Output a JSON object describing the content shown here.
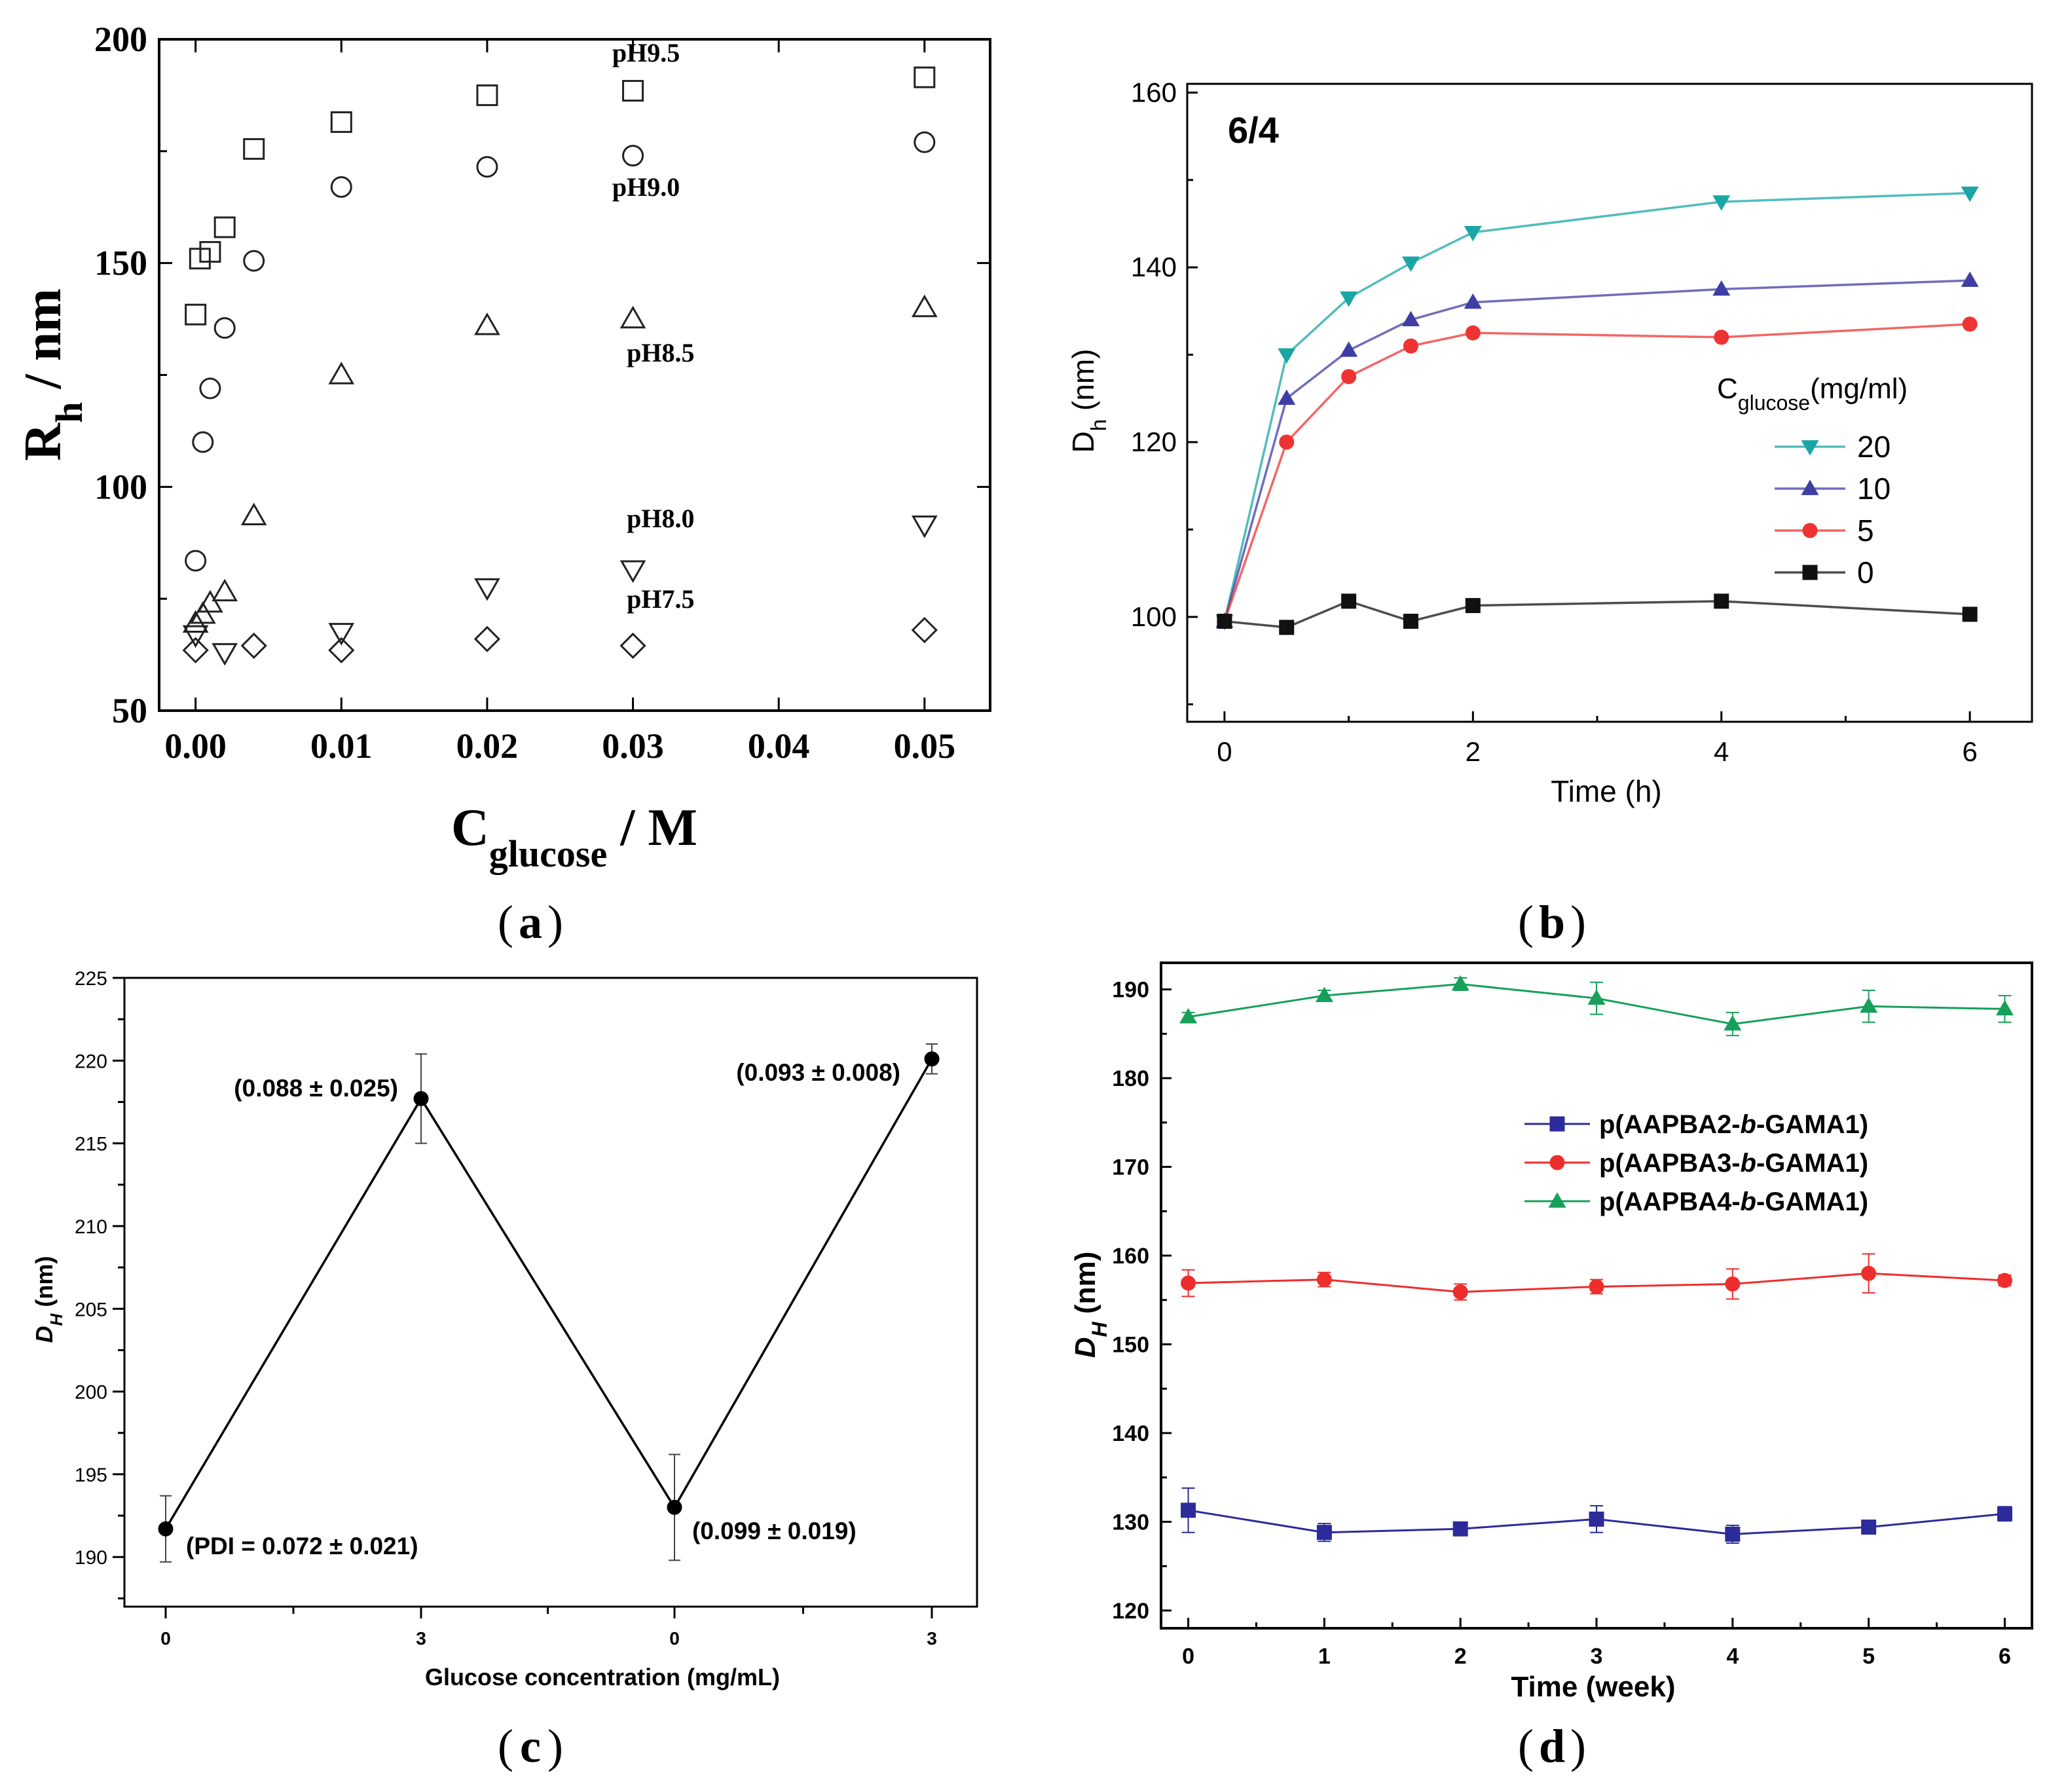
{
  "chart_data": [
    {
      "id": "a",
      "type": "scatter",
      "panel_label": "a",
      "xlabel": "C",
      "xlabel_sub": "glucose",
      "xlabel_suffix": " / M",
      "ylabel": "R",
      "ylabel_sub": "h",
      "ylabel_suffix": " / nm",
      "xlim": [
        -0.0025,
        0.0545
      ],
      "ylim": [
        50,
        200
      ],
      "xticks": [
        0,
        0.01,
        0.02,
        0.03,
        0.04,
        0.05
      ],
      "xtick_labels": [
        "0.00",
        "0.01",
        "0.02",
        "0.03",
        "0.04",
        "0.05"
      ],
      "yticks": [
        50,
        100,
        150,
        200
      ],
      "ytick_labels": [
        "50",
        "100",
        "150",
        "200"
      ],
      "series": [
        {
          "name": "pH9.5",
          "marker": "square",
          "label_pos": [
            0.03,
            195
          ],
          "points": [
            [
              0.0,
              138.5
            ],
            [
              0.0003,
              151
            ],
            [
              0.001,
              152.5
            ],
            [
              0.002,
              158
            ],
            [
              0.004,
              175.5
            ],
            [
              0.01,
              181.5
            ],
            [
              0.02,
              187.5
            ],
            [
              0.03,
              188.5
            ],
            [
              0.05,
              191.5
            ]
          ]
        },
        {
          "name": "pH9.0",
          "marker": "circle",
          "label_pos": [
            0.03,
            165
          ],
          "points": [
            [
              0.0,
              83.5
            ],
            [
              0.0005,
              110
            ],
            [
              0.001,
              122
            ],
            [
              0.002,
              135.5
            ],
            [
              0.004,
              150.5
            ],
            [
              0.01,
              167
            ],
            [
              0.02,
              171.5
            ],
            [
              0.03,
              174
            ],
            [
              0.05,
              177
            ]
          ]
        },
        {
          "name": "pH8.5",
          "marker": "triangle-up",
          "label_pos": [
            0.031,
            128
          ],
          "points": [
            [
              0.0,
              69.5
            ],
            [
              0.0005,
              71.5
            ],
            [
              0.001,
              74
            ],
            [
              0.002,
              76.5
            ],
            [
              0.004,
              93.5
            ],
            [
              0.01,
              125
            ],
            [
              0.02,
              136
            ],
            [
              0.03,
              137.5
            ],
            [
              0.05,
              140
            ]
          ]
        },
        {
          "name": "pH8.0",
          "marker": "triangle-down",
          "label_pos": [
            0.031,
            91
          ],
          "points": [
            [
              0.0,
              67
            ],
            [
              0.002,
              63
            ],
            [
              0.01,
              67.5
            ],
            [
              0.02,
              77.5
            ],
            [
              0.03,
              81.5
            ],
            [
              0.05,
              91.5
            ]
          ]
        },
        {
          "name": "pH7.5",
          "marker": "diamond",
          "label_pos": [
            0.031,
            73
          ],
          "points": [
            [
              0.0,
              63.5
            ],
            [
              0.004,
              64.5
            ],
            [
              0.01,
              63.5
            ],
            [
              0.02,
              66
            ],
            [
              0.03,
              64.5
            ],
            [
              0.05,
              68
            ]
          ]
        }
      ]
    },
    {
      "id": "b",
      "type": "line",
      "panel_label": "b",
      "annotation": "6/4",
      "xlabel": "Time (h)",
      "ylabel": "D",
      "ylabel_sub": "h",
      "ylabel_suffix": " (nm)",
      "xlim": [
        -0.3,
        6.5
      ],
      "ylim": [
        88,
        161
      ],
      "xticks": [
        0,
        2,
        4,
        6
      ],
      "yticks": [
        100,
        120,
        140,
        160
      ],
      "legend_title": "C",
      "legend_title_sub": "glucose",
      "legend_title_suffix": "(mg/ml)",
      "legend_position": "center-right",
      "series": [
        {
          "name": "20",
          "color": "#1aa6a6",
          "marker": "triangle-down",
          "x": [
            0,
            0.5,
            1,
            1.5,
            2,
            4,
            6
          ],
          "y": [
            99.5,
            130,
            136.5,
            140.5,
            144,
            147.5,
            148.5
          ]
        },
        {
          "name": "10",
          "color": "#3f3ea6",
          "marker": "triangle-up",
          "x": [
            0,
            0.5,
            1,
            1.5,
            2,
            4,
            6
          ],
          "y": [
            99.5,
            125,
            130.5,
            134,
            136,
            137.5,
            138.5
          ]
        },
        {
          "name": "5",
          "color": "#ee3333",
          "marker": "circle",
          "x": [
            0,
            0.5,
            1,
            1.5,
            2,
            4,
            6
          ],
          "y": [
            99.5,
            120,
            127.5,
            131,
            132.5,
            132,
            133.5
          ]
        },
        {
          "name": "0",
          "color": "#111111",
          "marker": "square",
          "x": [
            0,
            0.5,
            1,
            1.5,
            2,
            4,
            6
          ],
          "y": [
            99.5,
            98.8,
            101.8,
            99.5,
            101.3,
            101.8,
            100.3
          ]
        }
      ]
    },
    {
      "id": "c",
      "type": "line",
      "panel_label": "c",
      "xlabel": "Glucose concentration (mg/mL)",
      "ylabel": "D",
      "ylabel_sub": "H",
      "ylabel_suffix": " (nm)",
      "ylim": [
        187,
        225
      ],
      "yticks": [
        190,
        195,
        200,
        205,
        210,
        215,
        220,
        225
      ],
      "categories": [
        "0",
        "3",
        "0",
        "3"
      ],
      "values": [
        191.7,
        217.7,
        193.0,
        220.1
      ],
      "errors": [
        2.0,
        2.7,
        3.2,
        0.9
      ],
      "point_labels": [
        "(PDI = 0.072 ± 0.021)",
        "(0.088 ± 0.025)",
        "(0.099 ± 0.019)",
        "(0.093 ± 0.008)"
      ]
    },
    {
      "id": "d",
      "type": "line",
      "panel_label": "d",
      "xlabel": "Time (week)",
      "ylabel": "D",
      "ylabel_sub": "H",
      "ylabel_suffix": " (nm)",
      "xlim": [
        -0.2,
        6.2
      ],
      "ylim": [
        118,
        193
      ],
      "xticks": [
        0,
        1,
        2,
        3,
        4,
        5,
        6
      ],
      "yticks": [
        120,
        130,
        140,
        150,
        160,
        170,
        180,
        190
      ],
      "legend_position": "upper-center",
      "series": [
        {
          "name_pre": "p(AAPBA2-",
          "name_it": "b",
          "name_post": "-GAMA1)",
          "color": "#2b2b9a",
          "marker": "square",
          "x": [
            0,
            1,
            2,
            3,
            4,
            5,
            6
          ],
          "y": [
            131.3,
            128.8,
            129.2,
            130.3,
            128.6,
            129.4,
            130.9
          ],
          "err": [
            2.5,
            1.0,
            0.6,
            1.5,
            1.0,
            0.6,
            0.8
          ]
        },
        {
          "name_pre": "p(AAPBA3-",
          "name_it": "b",
          "name_post": "-GAMA1)",
          "color": "#ee2d2d",
          "marker": "circle",
          "x": [
            0,
            1,
            2,
            3,
            4,
            5,
            6
          ],
          "y": [
            156.9,
            157.3,
            155.9,
            156.5,
            156.8,
            158.0,
            157.2
          ],
          "err": [
            1.5,
            0.8,
            0.9,
            0.8,
            1.7,
            2.2,
            0.6
          ]
        },
        {
          "name_pre": "p(AAPBA4-",
          "name_it": "b",
          "name_post": "-GAMA1)",
          "color": "#16a05a",
          "marker": "triangle-up",
          "x": [
            0,
            1,
            2,
            3,
            4,
            5,
            6
          ],
          "y": [
            186.9,
            189.3,
            190.6,
            189.0,
            186.1,
            188.1,
            187.8
          ],
          "err": [
            0.5,
            0.6,
            0.7,
            1.8,
            1.3,
            1.8,
            1.5
          ]
        }
      ]
    }
  ]
}
